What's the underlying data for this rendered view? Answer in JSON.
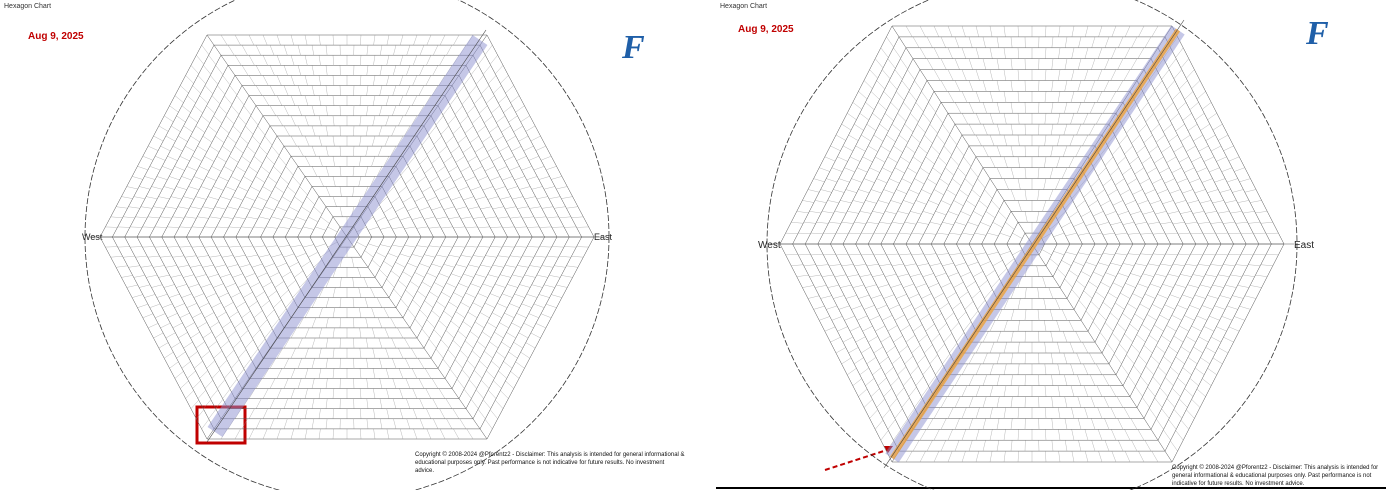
{
  "panels": [
    {
      "title": "Hexagon Chart",
      "date": "Aug 9, 2025",
      "west": "West",
      "east": "East",
      "logo": "F",
      "copyright": "Copyright © 2008-2024 @Pforentz2 - Disclaimer: This analysis is intended for general informational & educational purposes only. Past performance is not indicative for future results. No investment advice."
    },
    {
      "title": "Hexagon Chart",
      "date": "Aug 9, 2025",
      "west": "West",
      "east": "East",
      "logo": "F",
      "copyright": "Copyright © 2008-2024 @Pforentz2 - Disclaimer: This analysis is intended for general informational & educational purposes only. Past performance is not indicative for future results. No investment advice."
    }
  ]
}
